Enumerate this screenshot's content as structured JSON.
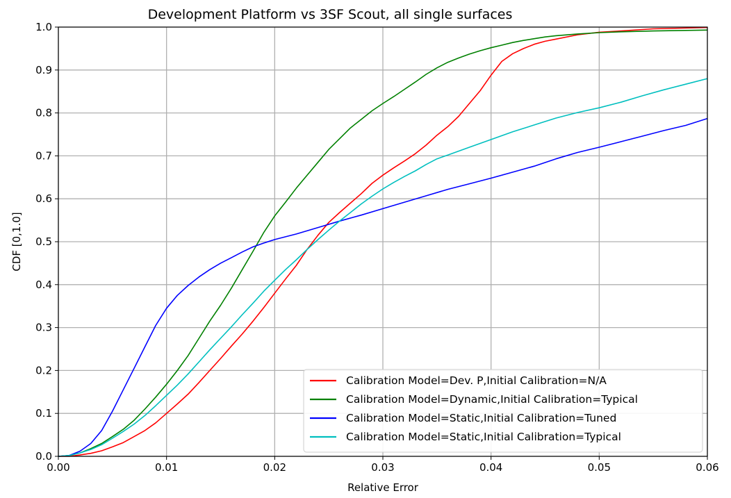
{
  "chart_data": {
    "type": "line",
    "title": "Development Platform vs 3SF Scout, all single surfaces",
    "xlabel": "Relative Error",
    "ylabel": "CDF [0,1.0]",
    "xlim": [
      0,
      0.06
    ],
    "ylim": [
      0,
      1.0
    ],
    "xticks": [
      "0.00",
      "0.01",
      "0.02",
      "0.03",
      "0.04",
      "0.05",
      "0.06"
    ],
    "yticks": [
      "0.0",
      "0.1",
      "0.2",
      "0.3",
      "0.4",
      "0.5",
      "0.6",
      "0.7",
      "0.8",
      "0.9",
      "1.0"
    ],
    "grid": true,
    "legend_position": "lower-right",
    "series": [
      {
        "name": "Calibration Model=Dev. P,Initial Calibration=N/A",
        "color": "#ff0000",
        "x": [
          0,
          0.001,
          0.002,
          0.003,
          0.004,
          0.005,
          0.006,
          0.007,
          0.008,
          0.009,
          0.01,
          0.011,
          0.012,
          0.013,
          0.014,
          0.015,
          0.016,
          0.017,
          0.018,
          0.019,
          0.02,
          0.021,
          0.022,
          0.023,
          0.024,
          0.025,
          0.026,
          0.027,
          0.028,
          0.029,
          0.03,
          0.031,
          0.032,
          0.033,
          0.034,
          0.035,
          0.036,
          0.037,
          0.038,
          0.039,
          0.04,
          0.041,
          0.042,
          0.043,
          0.044,
          0.045,
          0.046,
          0.048,
          0.05,
          0.052,
          0.055,
          0.06
        ],
        "y": [
          0,
          0.0,
          0.003,
          0.007,
          0.013,
          0.022,
          0.032,
          0.046,
          0.06,
          0.078,
          0.1,
          0.122,
          0.145,
          0.172,
          0.2,
          0.228,
          0.257,
          0.285,
          0.315,
          0.347,
          0.38,
          0.413,
          0.445,
          0.482,
          0.515,
          0.545,
          0.568,
          0.59,
          0.612,
          0.636,
          0.655,
          0.672,
          0.688,
          0.705,
          0.725,
          0.748,
          0.768,
          0.792,
          0.822,
          0.852,
          0.888,
          0.92,
          0.938,
          0.95,
          0.96,
          0.967,
          0.972,
          0.982,
          0.988,
          0.991,
          0.996,
          0.999
        ]
      },
      {
        "name": "Calibration Model=Dynamic,Initial Calibration=Typical",
        "color": "#008000",
        "x": [
          0,
          0.001,
          0.002,
          0.003,
          0.004,
          0.005,
          0.006,
          0.007,
          0.008,
          0.009,
          0.01,
          0.011,
          0.012,
          0.013,
          0.014,
          0.015,
          0.016,
          0.017,
          0.018,
          0.019,
          0.02,
          0.021,
          0.022,
          0.023,
          0.024,
          0.025,
          0.026,
          0.027,
          0.028,
          0.029,
          0.03,
          0.031,
          0.032,
          0.033,
          0.034,
          0.035,
          0.036,
          0.037,
          0.038,
          0.039,
          0.04,
          0.041,
          0.042,
          0.043,
          0.044,
          0.045,
          0.046,
          0.048,
          0.05,
          0.052,
          0.055,
          0.06
        ],
        "y": [
          0,
          0.002,
          0.008,
          0.018,
          0.03,
          0.046,
          0.063,
          0.084,
          0.11,
          0.138,
          0.168,
          0.2,
          0.235,
          0.275,
          0.315,
          0.352,
          0.392,
          0.435,
          0.478,
          0.522,
          0.56,
          0.592,
          0.625,
          0.655,
          0.685,
          0.715,
          0.74,
          0.765,
          0.785,
          0.805,
          0.822,
          0.838,
          0.855,
          0.872,
          0.89,
          0.905,
          0.918,
          0.928,
          0.937,
          0.945,
          0.952,
          0.958,
          0.964,
          0.969,
          0.973,
          0.977,
          0.98,
          0.984,
          0.987,
          0.989,
          0.991,
          0.993
        ]
      },
      {
        "name": "Calibration Model=Static,Initial Calibration=Tuned",
        "color": "#0000ff",
        "x": [
          0,
          0.001,
          0.002,
          0.003,
          0.004,
          0.005,
          0.006,
          0.007,
          0.008,
          0.009,
          0.01,
          0.011,
          0.012,
          0.013,
          0.014,
          0.015,
          0.016,
          0.017,
          0.018,
          0.019,
          0.02,
          0.022,
          0.024,
          0.026,
          0.028,
          0.03,
          0.032,
          0.034,
          0.036,
          0.038,
          0.04,
          0.042,
          0.044,
          0.046,
          0.048,
          0.05,
          0.052,
          0.054,
          0.056,
          0.058,
          0.06
        ],
        "y": [
          0,
          0.002,
          0.012,
          0.03,
          0.06,
          0.105,
          0.155,
          0.205,
          0.255,
          0.305,
          0.345,
          0.375,
          0.398,
          0.418,
          0.435,
          0.45,
          0.463,
          0.476,
          0.488,
          0.497,
          0.505,
          0.518,
          0.533,
          0.548,
          0.562,
          0.577,
          0.592,
          0.607,
          0.622,
          0.635,
          0.648,
          0.662,
          0.676,
          0.693,
          0.708,
          0.72,
          0.733,
          0.746,
          0.759,
          0.771,
          0.787
        ]
      },
      {
        "name": "Calibration Model=Static,Initial Calibration=Typical",
        "color": "#00bfbf",
        "x": [
          0,
          0.001,
          0.002,
          0.003,
          0.004,
          0.005,
          0.006,
          0.007,
          0.008,
          0.009,
          0.01,
          0.011,
          0.012,
          0.013,
          0.014,
          0.015,
          0.016,
          0.017,
          0.018,
          0.019,
          0.02,
          0.021,
          0.022,
          0.023,
          0.024,
          0.025,
          0.026,
          0.027,
          0.028,
          0.029,
          0.03,
          0.031,
          0.032,
          0.033,
          0.034,
          0.035,
          0.036,
          0.038,
          0.04,
          0.042,
          0.044,
          0.046,
          0.048,
          0.05,
          0.052,
          0.054,
          0.056,
          0.058,
          0.06
        ],
        "y": [
          0,
          0.002,
          0.008,
          0.016,
          0.027,
          0.042,
          0.058,
          0.075,
          0.095,
          0.118,
          0.142,
          0.166,
          0.192,
          0.22,
          0.248,
          0.275,
          0.302,
          0.33,
          0.357,
          0.385,
          0.41,
          0.435,
          0.458,
          0.482,
          0.505,
          0.527,
          0.548,
          0.568,
          0.588,
          0.606,
          0.623,
          0.638,
          0.652,
          0.665,
          0.68,
          0.693,
          0.702,
          0.72,
          0.738,
          0.756,
          0.772,
          0.788,
          0.801,
          0.812,
          0.825,
          0.84,
          0.854,
          0.867,
          0.88
        ]
      }
    ]
  }
}
